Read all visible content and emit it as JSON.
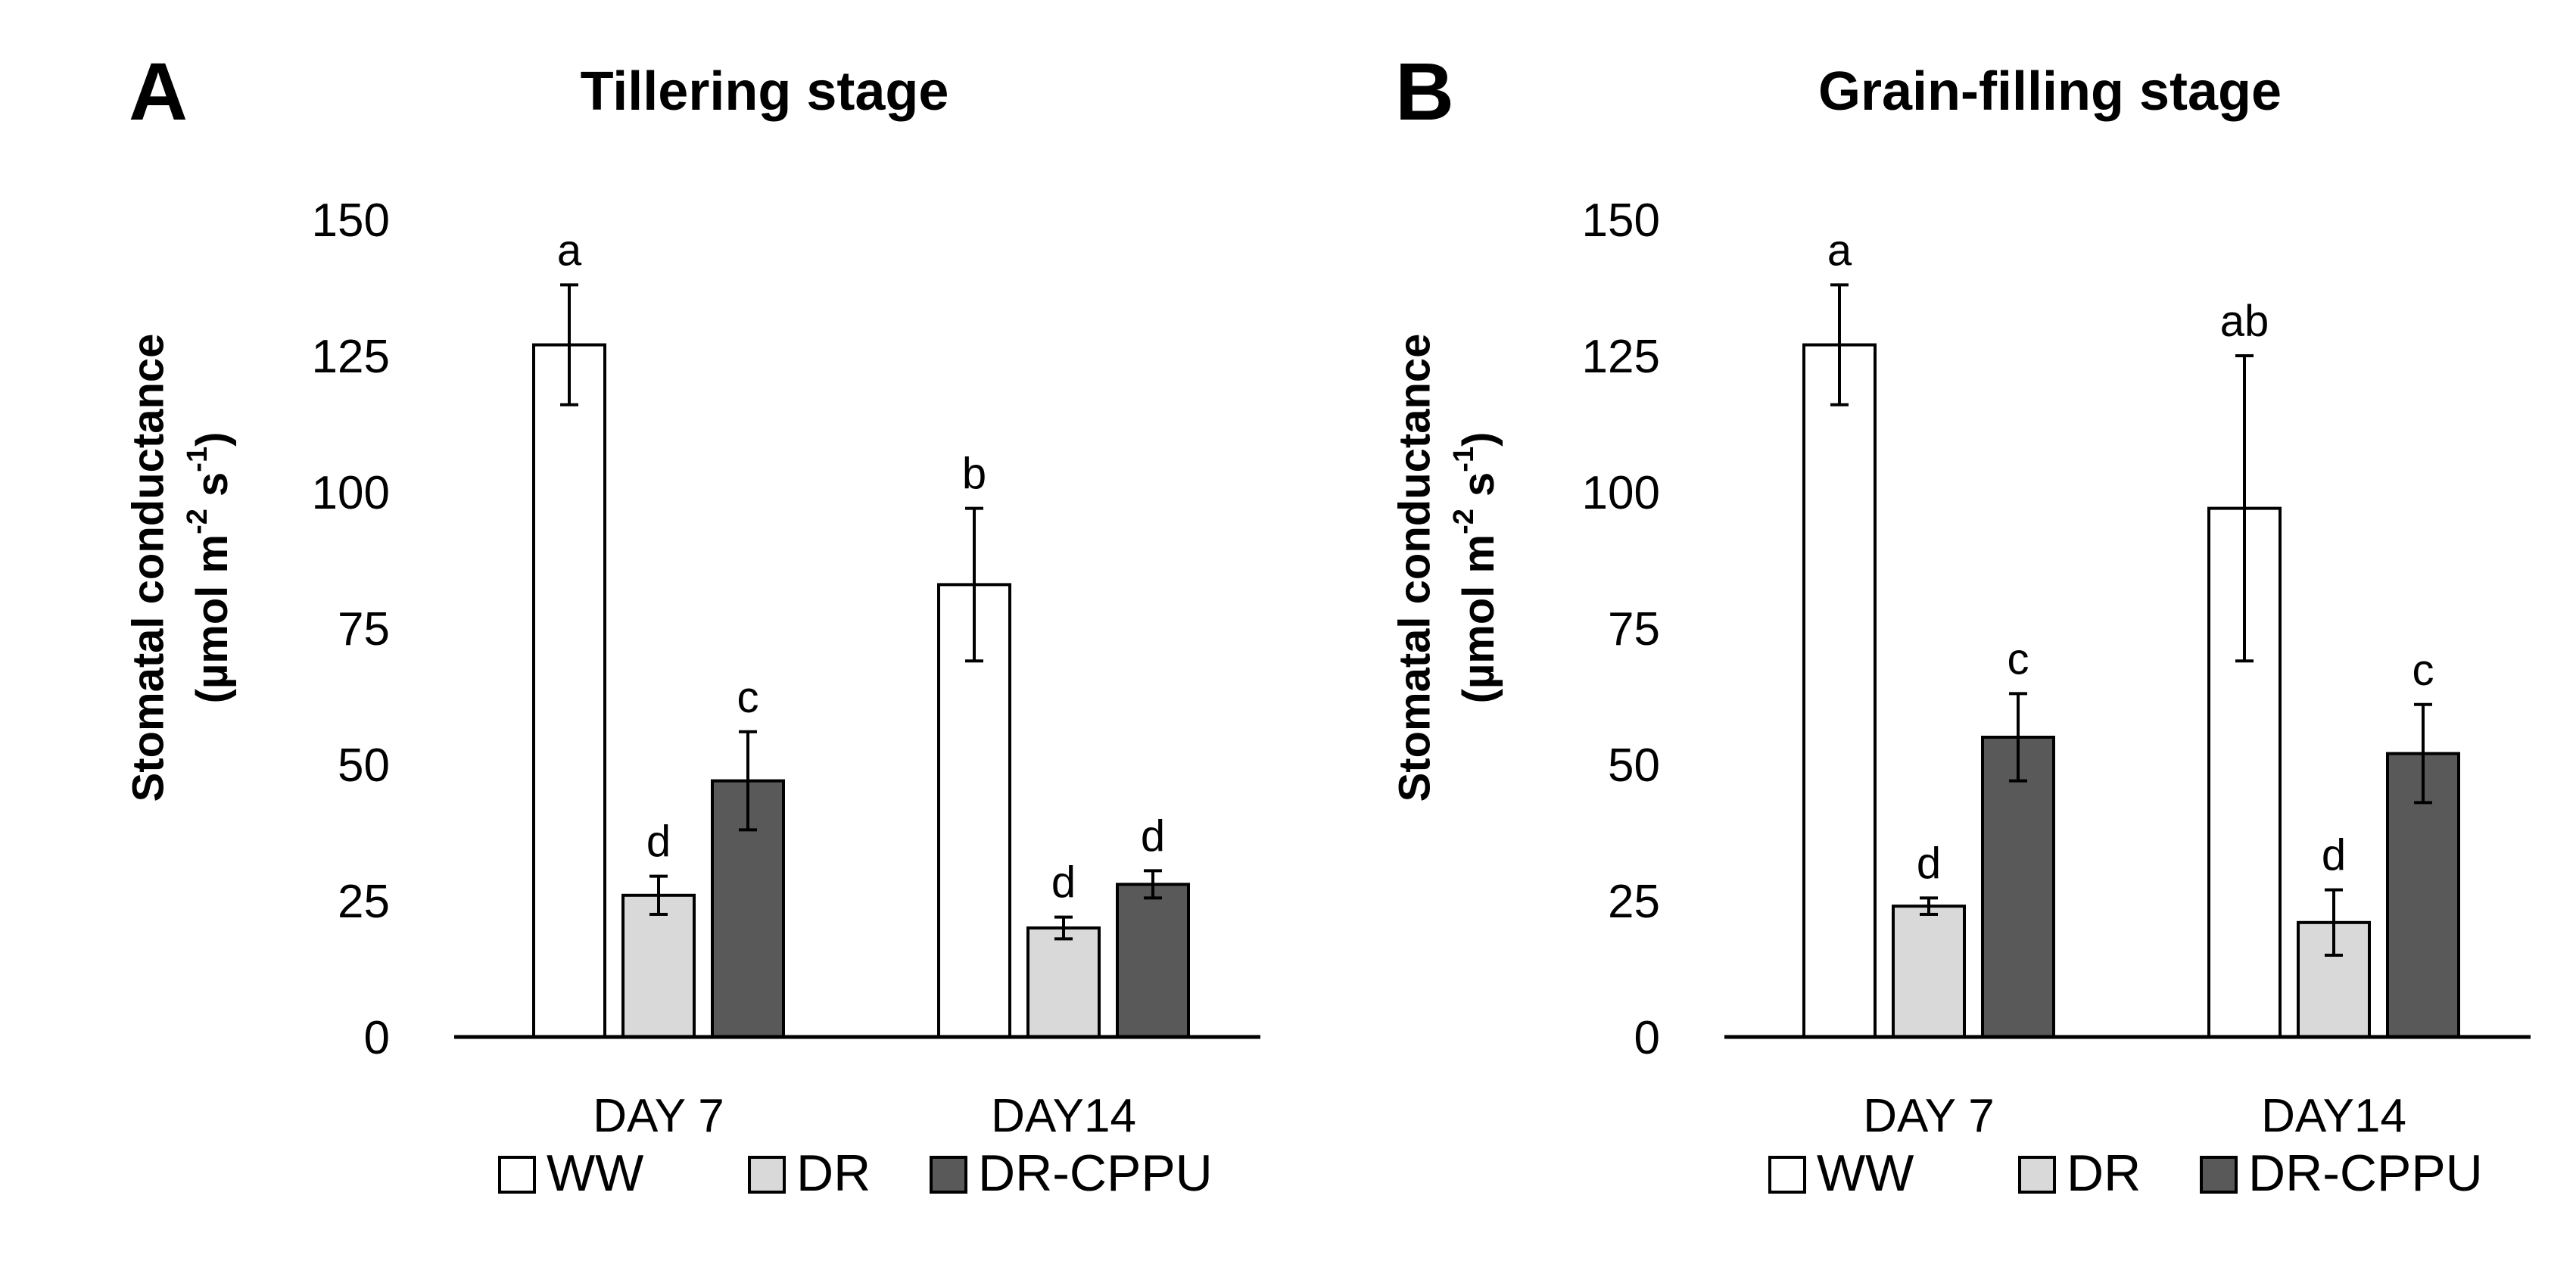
{
  "colors": {
    "WW": "#ffffff",
    "DR": "#d9d9d9",
    "DR-CPPU": "#595959",
    "stroke": "#000000"
  },
  "chart_data": [
    {
      "type": "bar",
      "panel": "A",
      "title": "Tillering stage",
      "ylabel_line1": "Stomatal conductance",
      "ylabel_line2": "(µmol m",
      "ylabel_sup1": "-2",
      "ylabel_mid": " s",
      "ylabel_sup2": "-1",
      "ylabel_end": ")",
      "xlabel": "",
      "ylim": [
        0,
        150
      ],
      "yticks": [
        0,
        25,
        50,
        75,
        100,
        125,
        150
      ],
      "categories": [
        "DAY 7",
        "DAY14"
      ],
      "series": [
        {
          "name": "WW",
          "values": [
            127,
            83
          ],
          "errors": [
            11,
            14
          ],
          "letters": [
            "a",
            "b"
          ]
        },
        {
          "name": "DR",
          "values": [
            26,
            20
          ],
          "errors": [
            3.5,
            2
          ],
          "letters": [
            "d",
            "d"
          ]
        },
        {
          "name": "DR-CPPU",
          "values": [
            47,
            28
          ],
          "errors": [
            9,
            2.5
          ],
          "letters": [
            "c",
            "d"
          ]
        }
      ],
      "legend": [
        "WW",
        "DR",
        "DR-CPPU"
      ]
    },
    {
      "type": "bar",
      "panel": "B",
      "title": "Grain-filling stage",
      "ylabel_line1": "Stomatal conductance",
      "ylabel_line2": "(µmol m",
      "ylabel_sup1": "-2",
      "ylabel_mid": " s",
      "ylabel_sup2": "-1",
      "ylabel_end": ")",
      "xlabel": "",
      "ylim": [
        0,
        150
      ],
      "yticks": [
        0,
        25,
        50,
        75,
        100,
        125,
        150
      ],
      "categories": [
        "DAY 7",
        "DAY14"
      ],
      "series": [
        {
          "name": "WW",
          "values": [
            127,
            97
          ],
          "errors": [
            11,
            28
          ],
          "letters": [
            "a",
            "ab"
          ]
        },
        {
          "name": "DR",
          "values": [
            24,
            21
          ],
          "errors": [
            1.5,
            6
          ],
          "letters": [
            "d",
            "d"
          ]
        },
        {
          "name": "DR-CPPU",
          "values": [
            55,
            52
          ],
          "errors": [
            8,
            9
          ],
          "letters": [
            "c",
            "c"
          ]
        }
      ],
      "legend": [
        "WW",
        "DR",
        "DR-CPPU"
      ]
    }
  ]
}
